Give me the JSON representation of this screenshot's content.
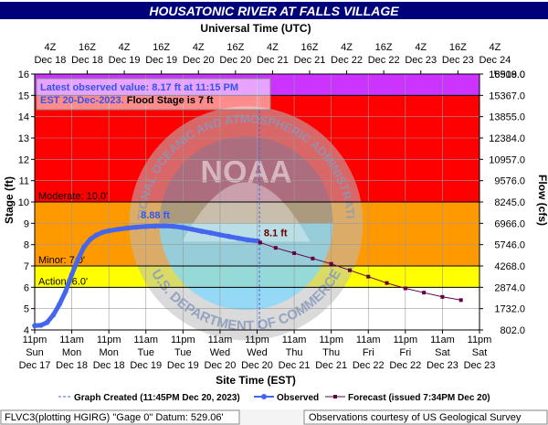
{
  "chart_data": {
    "type": "line",
    "title": "HOUSATONIC RIVER AT FALLS VILLAGE",
    "top_axis_title": "Universal Time (UTC)",
    "top_axis_ticks": [
      {
        "hour": 5,
        "l1": "4Z",
        "l2": "Dec 18"
      },
      {
        "hour": 17,
        "l1": "16Z",
        "l2": "Dec 18"
      },
      {
        "hour": 29,
        "l1": "4Z",
        "l2": "Dec 19"
      },
      {
        "hour": 41,
        "l1": "16Z",
        "l2": "Dec 19"
      },
      {
        "hour": 53,
        "l1": "4Z",
        "l2": "Dec 20"
      },
      {
        "hour": 65,
        "l1": "16Z",
        "l2": "Dec 20"
      },
      {
        "hour": 77,
        "l1": "4Z",
        "l2": "Dec 21"
      },
      {
        "hour": 89,
        "l1": "16Z",
        "l2": "Dec 21"
      },
      {
        "hour": 101,
        "l1": "4Z",
        "l2": "Dec 22"
      },
      {
        "hour": 113,
        "l1": "16Z",
        "l2": "Dec 22"
      },
      {
        "hour": 125,
        "l1": "4Z",
        "l2": "Dec 23"
      },
      {
        "hour": 137,
        "l1": "16Z",
        "l2": "Dec 23"
      },
      {
        "hour": 149,
        "l1": "4Z",
        "l2": "Dec 24"
      }
    ],
    "bottom_axis_title": "Site Time (EST)",
    "bottom_axis_ticks": [
      {
        "hour": 0,
        "l1": "11pm",
        "l2": "Sun",
        "l3": "Dec 17"
      },
      {
        "hour": 12,
        "l1": "11am",
        "l2": "Mon",
        "l3": "Dec 18"
      },
      {
        "hour": 24,
        "l1": "11pm",
        "l2": "Mon",
        "l3": "Dec 18"
      },
      {
        "hour": 36,
        "l1": "11am",
        "l2": "Tue",
        "l3": "Dec 19"
      },
      {
        "hour": 48,
        "l1": "11pm",
        "l2": "Tue",
        "l3": "Dec 19"
      },
      {
        "hour": 60,
        "l1": "11am",
        "l2": "Wed",
        "l3": "Dec 20"
      },
      {
        "hour": 72,
        "l1": "11pm",
        "l2": "Wed",
        "l3": "Dec 20"
      },
      {
        "hour": 84,
        "l1": "11am",
        "l2": "Thu",
        "l3": "Dec 21"
      },
      {
        "hour": 96,
        "l1": "11pm",
        "l2": "Thu",
        "l3": "Dec 21"
      },
      {
        "hour": 108,
        "l1": "11am",
        "l2": "Fri",
        "l3": "Dec 22"
      },
      {
        "hour": 120,
        "l1": "11pm",
        "l2": "Fri",
        "l3": "Dec 22"
      },
      {
        "hour": 132,
        "l1": "11am",
        "l2": "Sat",
        "l3": "Dec 23"
      },
      {
        "hour": 144,
        "l1": "11pm",
        "l2": "Sat",
        "l3": "Dec 23"
      }
    ],
    "ylabel": "Stage (ft)",
    "y2label": "Flow (cfs)",
    "ylim": [
      4,
      16
    ],
    "xlim_hours": [
      0,
      144
    ],
    "y_ticks": [
      4,
      5,
      6,
      7,
      8,
      9,
      10,
      11,
      12,
      13,
      14,
      15,
      16
    ],
    "flow_ticks": [
      {
        "stage": 4,
        "label": "802.0"
      },
      {
        "stage": 5,
        "label": "1732.0"
      },
      {
        "stage": 6,
        "label": "2874.0"
      },
      {
        "stage": 7,
        "label": "4268.0"
      },
      {
        "stage": 8,
        "label": "5746.0"
      },
      {
        "stage": 9,
        "label": "6966.0"
      },
      {
        "stage": 10,
        "label": "8245.0"
      },
      {
        "stage": 11,
        "label": "9576.0"
      },
      {
        "stage": 12,
        "label": "10957.0"
      },
      {
        "stage": 13,
        "label": "12384.0"
      },
      {
        "stage": 14,
        "label": "13855.0"
      },
      {
        "stage": 15,
        "label": "15367.0"
      },
      {
        "stage": 16,
        "label": "16919.0"
      },
      {
        "stage": 17,
        "label": "18508.0"
      }
    ],
    "bands": [
      {
        "from": 4,
        "to": 6,
        "color": "#ffffff"
      },
      {
        "from": 6,
        "to": 7,
        "color": "#ffff00"
      },
      {
        "from": 7,
        "to": 10,
        "color": "#ff9900"
      },
      {
        "from": 10,
        "to": 15,
        "color": "#ff0000"
      },
      {
        "from": 15,
        "to": 16,
        "color": "#cc33ff"
      }
    ],
    "stage_lines": [
      {
        "stage": 6,
        "label": "Action: 6.0'"
      },
      {
        "stage": 7,
        "label": "Minor: 7.0'"
      },
      {
        "stage": 10,
        "label": "Moderate: 10.0'"
      },
      {
        "stage": 15,
        "label": ""
      }
    ],
    "series": [
      {
        "name": "Observed",
        "color": "#4466ee",
        "x_hours": [
          0,
          2,
          4,
          6,
          8,
          10,
          12,
          14,
          16,
          18,
          20,
          22,
          24,
          27,
          30,
          33,
          36,
          39,
          42,
          45,
          48,
          51,
          54,
          57,
          60,
          63,
          66,
          69,
          72.25
        ],
        "values": [
          4.2,
          4.22,
          4.35,
          4.7,
          5.2,
          5.8,
          6.6,
          7.3,
          7.9,
          8.25,
          8.45,
          8.58,
          8.65,
          8.72,
          8.78,
          8.82,
          8.85,
          8.87,
          8.88,
          8.86,
          8.8,
          8.72,
          8.63,
          8.55,
          8.46,
          8.38,
          8.3,
          8.22,
          8.17
        ]
      },
      {
        "name": "Forecast (issued 7:34PM Dec 20)",
        "color": "#660044",
        "x_hours": [
          73,
          78,
          84,
          90,
          96,
          102,
          108,
          114,
          120,
          126,
          132,
          138
        ],
        "values": [
          8.1,
          7.85,
          7.6,
          7.35,
          7.1,
          6.8,
          6.5,
          6.2,
          5.95,
          5.75,
          5.55,
          5.4
        ]
      }
    ],
    "graph_created_hour": 72.75,
    "annotations": {
      "peak_label": "8.88 ft",
      "peak_hour": 42,
      "peak_value": 8.88,
      "forecast_label": "8.1 ft",
      "forecast_hour": 73,
      "forecast_value": 8.1
    },
    "info_box": {
      "line1": "Latest observed value: 8.17 ft at 11:15 PM",
      "line2_a": "EST 20-Dec-2023.",
      "line2_b": "Flood Stage is 7 ft"
    },
    "legend": {
      "graph_created": "Graph Created (11:45PM Dec 20, 2023)",
      "observed": "Observed",
      "forecast": "Forecast (issued 7:34PM Dec 20)"
    },
    "footer_left": "FLVC3(plotting HGIRG) \"Gage 0\" Datum:  529.06'",
    "footer_right": "Observations courtesy of US Geological Survey",
    "watermark": {
      "center_text": "NOAA",
      "top_text": "NATIONAL OCEANIC AND ATMOSPHERIC ADMINISTRATION",
      "bottom_text": "U.S. DEPARTMENT OF COMMERCE"
    }
  }
}
